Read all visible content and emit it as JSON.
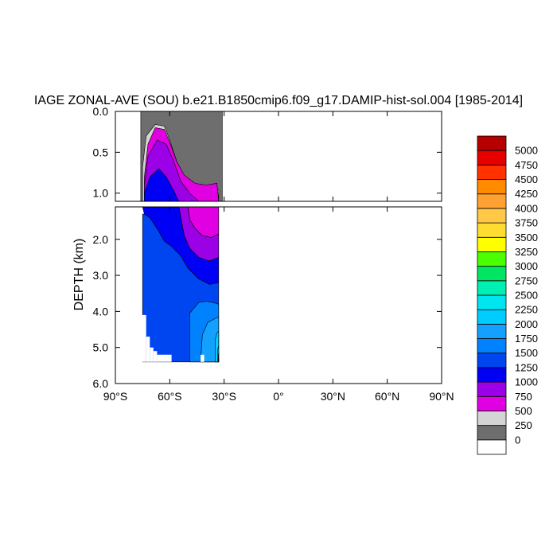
{
  "chart_data": {
    "type": "contour",
    "title": "IAGE ZONAL-AVE (SOU) b.e21.B1850cmip6.f09_g17.DAMIP-hist-sol.004 [1985-2014]",
    "ylabel": "DEPTH (km)",
    "xlabel": "",
    "x_ticks": [
      "90°S",
      "60°S",
      "30°S",
      "0°",
      "30°N",
      "60°N",
      "90°N"
    ],
    "x_tick_values": [
      -90,
      -60,
      -30,
      0,
      30,
      60,
      90
    ],
    "upper_panel": {
      "y_ticks": [
        "0.0",
        "0.5",
        "1.0"
      ],
      "y_tick_values": [
        0.0,
        0.5,
        1.0
      ],
      "ylim": [
        0.0,
        1.1
      ]
    },
    "lower_panel": {
      "y_ticks": [
        "2.0",
        "3.0",
        "4.0",
        "5.0",
        "6.0"
      ],
      "y_tick_values": [
        2.0,
        3.0,
        4.0,
        5.0,
        6.0
      ],
      "ylim": [
        1.1,
        6.0
      ]
    },
    "colorbar": {
      "levels": [
        "0",
        "250",
        "500",
        "750",
        "1000",
        "1250",
        "1500",
        "1750",
        "2000",
        "2250",
        "2500",
        "2750",
        "3000",
        "3250",
        "3500",
        "3750",
        "4000",
        "4250",
        "4500",
        "4750",
        "5000"
      ],
      "colors": [
        "#ffffff",
        "#6e6e6e",
        "#d4d4d4",
        "#e100e1",
        "#9b00e6",
        "#0000f5",
        "#0046f0",
        "#0082ff",
        "#14a0ff",
        "#00cdff",
        "#00e6f0",
        "#00f0b4",
        "#00e664",
        "#4bff00",
        "#ffff00",
        "#ffdc32",
        "#ffc846",
        "#ffa032",
        "#ff8c00",
        "#ff3200",
        "#e60000",
        "#b40000"
      ]
    },
    "fields": [
      {
        "band": "250",
        "color": "#6e6e6e",
        "points": [
          [
            -76,
            0.0
          ],
          [
            -31,
            0.0
          ],
          [
            -31,
            1.1
          ],
          [
            -76,
            1.1
          ]
        ]
      },
      {
        "band": "500",
        "color": "#d4d4d4",
        "points": [
          [
            -75,
            0.68
          ],
          [
            -73,
            0.3
          ],
          [
            -68,
            0.16
          ],
          [
            -63,
            0.18
          ],
          [
            -60,
            0.35
          ],
          [
            -56,
            0.62
          ],
          [
            -51,
            0.85
          ],
          [
            -45,
            1.0
          ],
          [
            -38,
            0.98
          ],
          [
            -33,
            0.96
          ],
          [
            -33,
            1.1
          ],
          [
            -75,
            1.1
          ]
        ]
      },
      {
        "band": "750",
        "color": "#e100e1",
        "points": [
          [
            -74,
            0.8
          ],
          [
            -72,
            0.4
          ],
          [
            -68,
            0.2
          ],
          [
            -63,
            0.22
          ],
          [
            -60,
            0.38
          ],
          [
            -56,
            0.62
          ],
          [
            -52,
            0.78
          ],
          [
            -46,
            0.88
          ],
          [
            -40,
            0.9
          ],
          [
            -34,
            0.88
          ],
          [
            -33,
            1.1
          ],
          [
            -74,
            1.1
          ]
        ]
      },
      {
        "band": "1000",
        "color": "#9b00e6",
        "points": [
          [
            -74,
            0.9
          ],
          [
            -72,
            0.55
          ],
          [
            -67,
            0.35
          ],
          [
            -62,
            0.4
          ],
          [
            -58,
            0.6
          ],
          [
            -54,
            0.85
          ],
          [
            -49,
            1.0
          ],
          [
            -44,
            1.1
          ],
          [
            -74,
            1.1
          ]
        ]
      },
      {
        "band": "1250",
        "color": "#0000f5",
        "points": [
          [
            -74,
            1.0
          ],
          [
            -71,
            0.8
          ],
          [
            -66,
            0.7
          ],
          [
            -62,
            0.8
          ],
          [
            -58,
            0.96
          ],
          [
            -55,
            1.1
          ],
          [
            -74,
            1.1
          ]
        ]
      },
      {
        "band": "750",
        "color": "#e100e1",
        "points": [
          [
            -50,
            1.1
          ],
          [
            -33,
            1.1
          ],
          [
            -33,
            1.85
          ],
          [
            -37,
            1.95
          ],
          [
            -42,
            1.9
          ],
          [
            -46,
            1.7
          ],
          [
            -49,
            1.45
          ]
        ]
      },
      {
        "band": "1000",
        "color": "#9b00e6",
        "points": [
          [
            -55,
            1.1
          ],
          [
            -50,
            1.1
          ],
          [
            -49,
            1.45
          ],
          [
            -46,
            1.7
          ],
          [
            -42,
            1.9
          ],
          [
            -37,
            1.95
          ],
          [
            -33,
            1.85
          ],
          [
            -33,
            2.5
          ],
          [
            -38,
            2.6
          ],
          [
            -44,
            2.5
          ],
          [
            -49,
            2.25
          ],
          [
            -52,
            1.9
          ]
        ]
      },
      {
        "band": "1250",
        "color": "#0000f5",
        "points": [
          [
            -75,
            1.1
          ],
          [
            -55,
            1.1
          ],
          [
            -52,
            1.9
          ],
          [
            -49,
            2.25
          ],
          [
            -44,
            2.5
          ],
          [
            -38,
            2.6
          ],
          [
            -33,
            2.5
          ],
          [
            -33,
            3.2
          ],
          [
            -38,
            3.25
          ],
          [
            -44,
            3.1
          ],
          [
            -50,
            2.8
          ],
          [
            -54,
            2.45
          ],
          [
            -59,
            2.2
          ],
          [
            -63,
            2.05
          ],
          [
            -67,
            1.7
          ],
          [
            -71,
            1.4
          ],
          [
            -74,
            1.3
          ]
        ]
      },
      {
        "band": "1500",
        "color": "#0046f0",
        "points": [
          [
            -74,
            1.3
          ],
          [
            -71,
            1.4
          ],
          [
            -67,
            1.7
          ],
          [
            -63,
            2.05
          ],
          [
            -59,
            2.2
          ],
          [
            -54,
            2.45
          ],
          [
            -50,
            2.8
          ],
          [
            -44,
            3.1
          ],
          [
            -38,
            3.25
          ],
          [
            -33,
            3.2
          ],
          [
            -33,
            5.4
          ],
          [
            -75,
            5.4
          ],
          [
            -75,
            1.3
          ]
        ]
      },
      {
        "band": "1750",
        "color": "#0082ff",
        "points": [
          [
            -49,
            4.05
          ],
          [
            -44,
            3.75
          ],
          [
            -40,
            3.72
          ],
          [
            -36,
            3.75
          ],
          [
            -33,
            3.8
          ],
          [
            -33,
            5.4
          ],
          [
            -49,
            5.4
          ]
        ]
      },
      {
        "band": "2000",
        "color": "#14a0ff",
        "points": [
          [
            -43,
            5.4
          ],
          [
            -42,
            4.65
          ],
          [
            -39,
            4.3
          ],
          [
            -35,
            4.2
          ],
          [
            -33,
            4.15
          ],
          [
            -33,
            5.4
          ]
        ]
      },
      {
        "band": "2250",
        "color": "#00cdff",
        "points": [
          [
            -35,
            5.4
          ],
          [
            -35,
            4.8
          ],
          [
            -34,
            4.6
          ],
          [
            -33,
            4.55
          ],
          [
            -33,
            5.4
          ]
        ]
      },
      {
        "band": "2500",
        "color": "#00e6f0",
        "points": [
          [
            -33.6,
            5.4
          ],
          [
            -33.5,
            5.05
          ],
          [
            -33,
            4.95
          ],
          [
            -33,
            5.4
          ]
        ]
      },
      {
        "band": "2750",
        "color": "#00f0b4",
        "points": [
          [
            -33.3,
            5.4
          ],
          [
            -33.2,
            5.2
          ],
          [
            -33,
            5.15
          ],
          [
            -33,
            5.4
          ]
        ]
      },
      {
        "band": "3000",
        "color": "#00e664",
        "points": [
          [
            -33.1,
            5.4
          ],
          [
            -33,
            5.3
          ],
          [
            -33,
            5.4
          ]
        ]
      }
    ],
    "masks": [
      {
        "points": [
          [
            -76,
            4.1
          ],
          [
            -73,
            4.1
          ],
          [
            -73,
            5.4
          ],
          [
            -76,
            5.4
          ]
        ]
      },
      {
        "points": [
          [
            -73,
            4.7
          ],
          [
            -71,
            4.7
          ],
          [
            -71,
            5.4
          ],
          [
            -73,
            5.4
          ]
        ]
      },
      {
        "points": [
          [
            -71,
            5.0
          ],
          [
            -69,
            5.0
          ],
          [
            -69,
            5.4
          ],
          [
            -71,
            5.4
          ]
        ]
      },
      {
        "points": [
          [
            -69,
            5.1
          ],
          [
            -67,
            5.1
          ],
          [
            -67,
            5.4
          ],
          [
            -69,
            5.4
          ]
        ]
      },
      {
        "points": [
          [
            -67,
            5.2
          ],
          [
            -59,
            5.2
          ],
          [
            -59,
            5.4
          ],
          [
            -67,
            5.4
          ]
        ]
      },
      {
        "points": [
          [
            -43,
            5.2
          ],
          [
            -41,
            5.2
          ],
          [
            -41,
            5.4
          ],
          [
            -43,
            5.4
          ]
        ]
      }
    ]
  }
}
